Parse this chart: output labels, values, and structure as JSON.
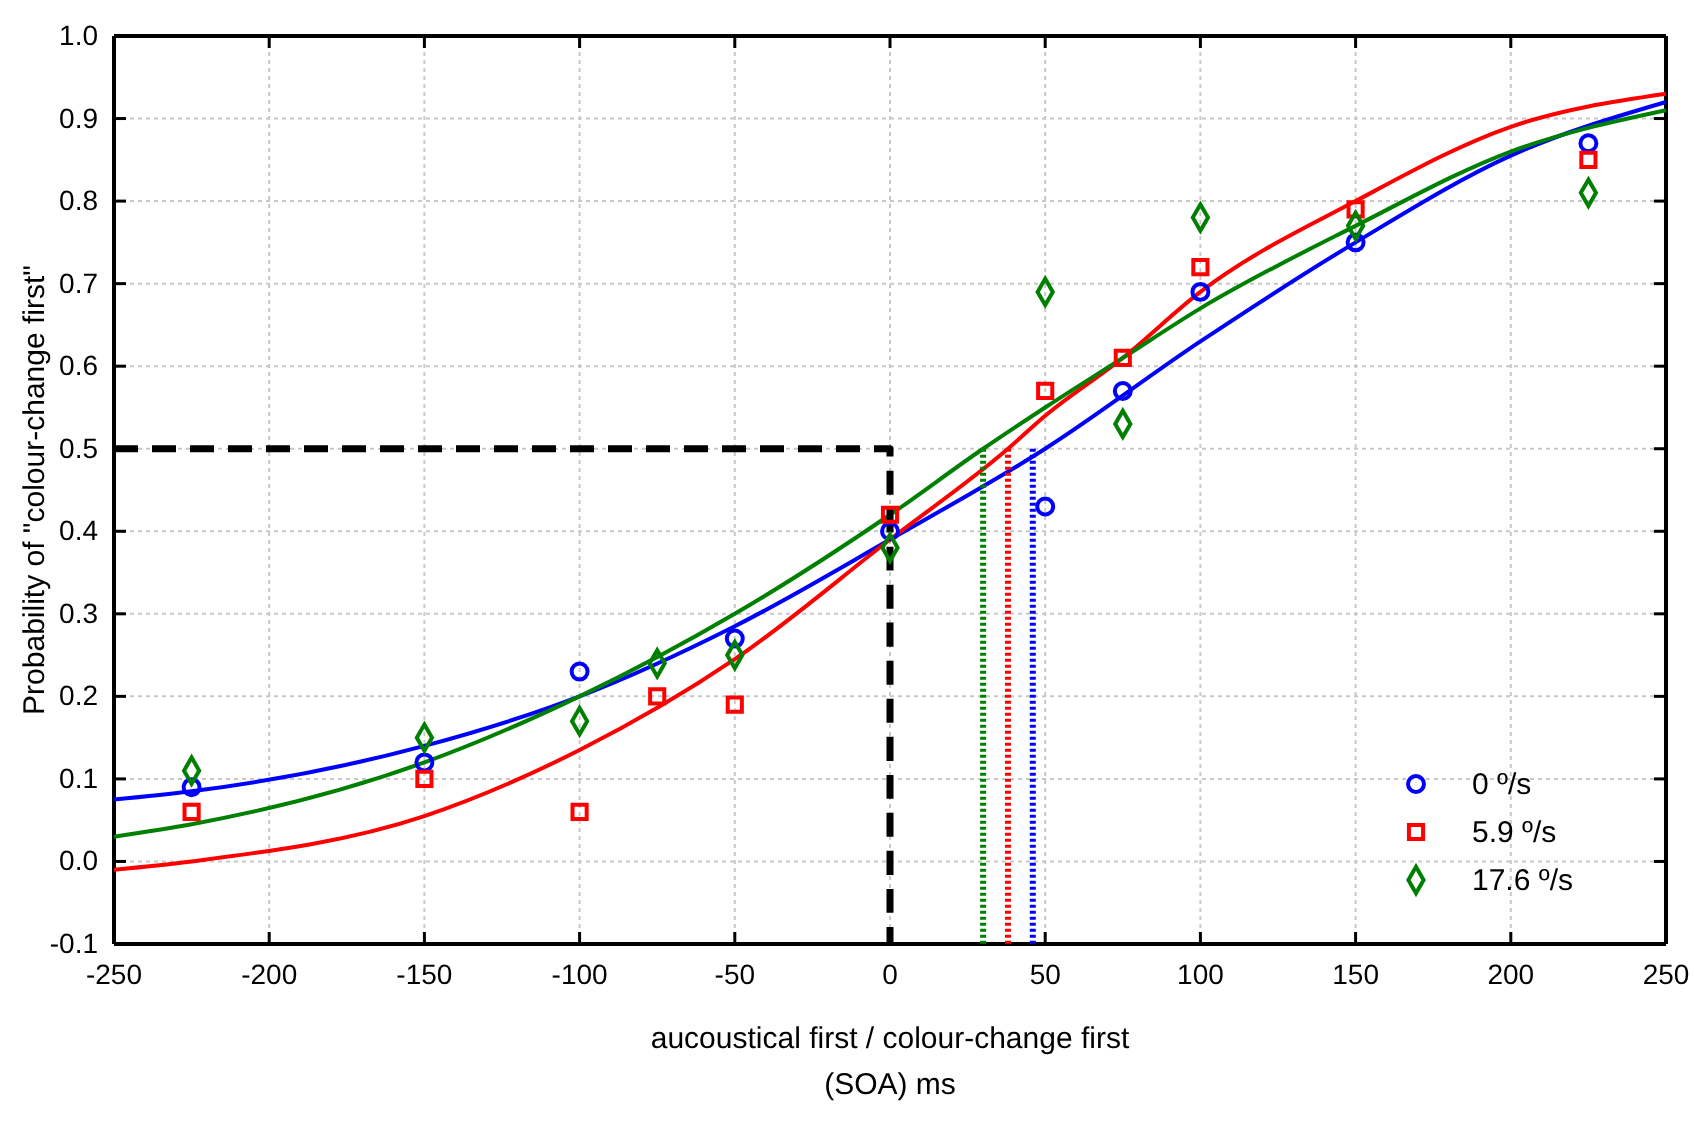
{
  "chart_data": {
    "type": "scatter",
    "xlabel": "aucoustical first / colour-change first\n(SOA) ms",
    "ylabel": "Probability of \"colour-change first\"",
    "xlim": [
      -250,
      250
    ],
    "xticks": [
      -250,
      -200,
      -150,
      -100,
      -50,
      0,
      50,
      100,
      150,
      200,
      250
    ],
    "ylim": [
      -0.1,
      1.0
    ],
    "yticks": [
      -0.1,
      {
        "value": 0,
        "label": "0.0"
      },
      0.1,
      0.2,
      0.3,
      0.4,
      0.5,
      0.6,
      0.7,
      0.8,
      0.9,
      {
        "value": 1,
        "label": "1.0"
      }
    ],
    "grid": true,
    "legend": "bottom right",
    "series": [
      {
        "type": "line",
        "color": "#0000ff",
        "line_style": "solid",
        "marker": "none",
        "x": [
          -250,
          -225,
          -150,
          -100,
          -50,
          0,
          50,
          100,
          150,
          200,
          250
        ],
        "values": [
          0.075,
          0.085,
          0.14,
          0.2,
          0.285,
          0.39,
          0.5,
          0.63,
          0.75,
          0.855,
          0.92
        ]
      },
      {
        "type": "line",
        "color": "#ff0000",
        "line_style": "solid",
        "marker": "none",
        "x": [
          -250,
          -225,
          -150,
          -100,
          -50,
          0,
          38,
          50,
          75,
          100,
          150,
          200,
          250
        ],
        "values": [
          -0.01,
          0,
          0.055,
          0.135,
          0.245,
          0.39,
          0.5,
          0.54,
          0.61,
          0.69,
          0.8,
          0.89,
          0.93
        ]
      },
      {
        "type": "line",
        "color": "#008000",
        "line_style": "solid",
        "marker": "none",
        "x": [
          -250,
          -225,
          -150,
          -100,
          -50,
          0,
          30,
          50,
          75,
          100,
          150,
          200,
          250
        ],
        "values": [
          0.03,
          0.045,
          0.12,
          0.2,
          0.3,
          0.42,
          0.5,
          0.55,
          0.61,
          0.67,
          0.77,
          0.86,
          0.91
        ]
      },
      {
        "type": "line",
        "color": "#000000",
        "line_style": "dashed",
        "marker": "none",
        "x": [
          -250,
          0,
          0
        ],
        "values": [
          0.5,
          0.5,
          -0.1
        ]
      },
      {
        "type": "line",
        "color": "#008000",
        "line_style": "dotted",
        "marker": "none",
        "x": [
          30,
          30
        ],
        "values": [
          0.5,
          -0.1
        ]
      },
      {
        "type": "line",
        "color": "#ff0000",
        "line_style": "dotted",
        "marker": "none",
        "x": [
          38,
          38
        ],
        "values": [
          0.5,
          -0.1
        ]
      },
      {
        "type": "line",
        "color": "#0000ff",
        "line_style": "dotted",
        "marker": "none",
        "x": [
          46,
          46
        ],
        "values": [
          0.5,
          -0.1
        ]
      },
      {
        "name": "0 º/s",
        "color": "#0000ff",
        "marker": "circle",
        "x": [
          -225,
          -150,
          -100,
          -50,
          0,
          50,
          75,
          100,
          150,
          225
        ],
        "values": [
          0.09,
          0.12,
          0.23,
          0.27,
          0.4,
          0.43,
          0.57,
          0.69,
          0.75,
          0.87
        ]
      },
      {
        "name": "5.9 º/s",
        "color": "#ff0000",
        "marker": "square",
        "x": [
          -225,
          -150,
          -100,
          -75,
          -50,
          0,
          50,
          75,
          100,
          150,
          225
        ],
        "values": [
          0.06,
          0.1,
          0.06,
          0.2,
          0.19,
          0.42,
          0.57,
          0.61,
          0.72,
          0.79,
          0.85
        ]
      },
      {
        "name": "17.6 º/s",
        "color": "#008000",
        "marker": "diamond",
        "x": [
          -225,
          -150,
          -100,
          -75,
          -50,
          0,
          50,
          75,
          100,
          150,
          225
        ],
        "values": [
          0.11,
          0.15,
          0.17,
          0.24,
          0.25,
          0.38,
          0.69,
          0.53,
          0.78,
          0.77,
          0.81
        ]
      }
    ]
  }
}
